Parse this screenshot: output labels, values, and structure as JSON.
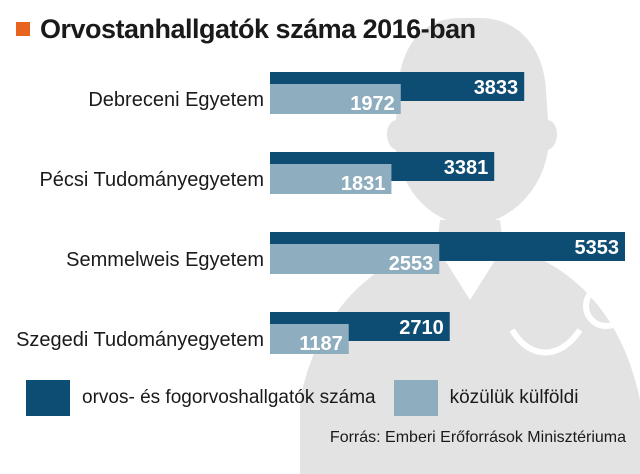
{
  "title": "Orvostanhallgatók száma 2016-ban",
  "source": "Forrás: Emberi Erőforrások Minisztériuma",
  "colors": {
    "accent": "#e8641e",
    "total": "#0d4c73",
    "foreign": "#8eaebf",
    "background_figure": "#e3e3e3",
    "text": "#1a1a1a"
  },
  "chart_data": {
    "type": "bar",
    "orientation": "horizontal",
    "categories": [
      "Debreceni Egyetem",
      "Pécsi Tudományegyetem",
      "Semmelweis Egyetem",
      "Szegedi Tudományegyetem"
    ],
    "series": [
      {
        "name": "orvos- és fogorvoshallgatók száma",
        "values": [
          3833,
          3381,
          5353,
          2710
        ]
      },
      {
        "name": "közülük külföldi",
        "values": [
          1972,
          1831,
          2553,
          1187
        ]
      }
    ],
    "xlim": [
      0,
      5353
    ],
    "grid": false,
    "legend": "bottom"
  }
}
